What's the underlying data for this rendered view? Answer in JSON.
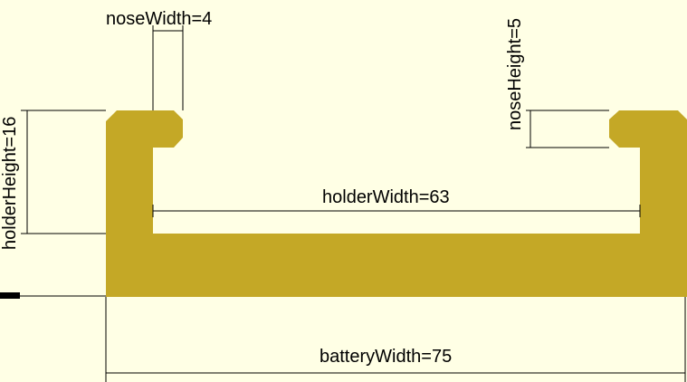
{
  "colors": {
    "background": "#ffffe5",
    "profile": "#c4a826",
    "dimension_lines": "#000000"
  },
  "labels": {
    "nose_width": "noseWidth=4",
    "nose_height": "noseHeight=5",
    "holder_height": "holderHeight=16",
    "holder_width": "holderWidth=63",
    "battery_width": "batteryWidth=75"
  }
}
